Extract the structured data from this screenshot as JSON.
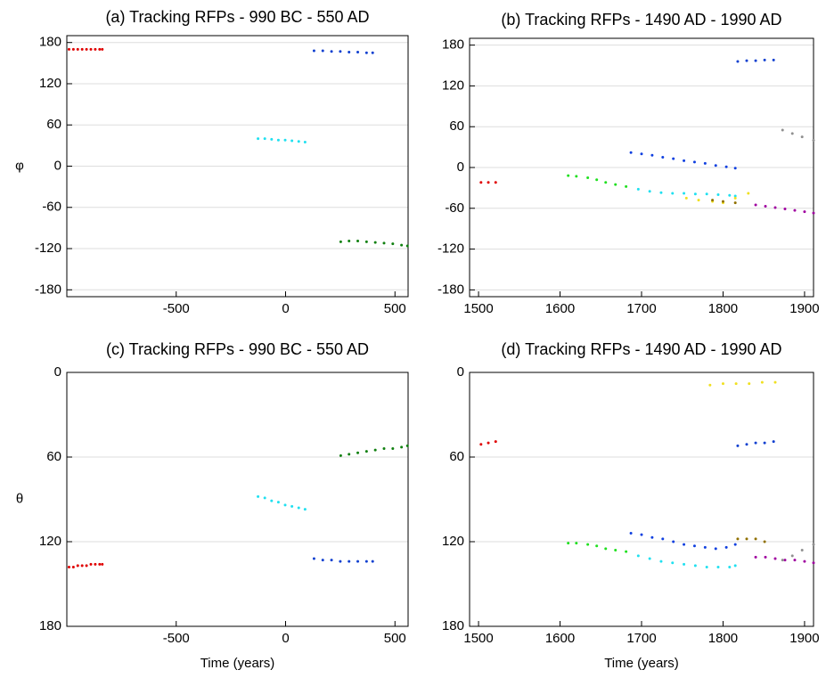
{
  "chart_data": [
    {
      "type": "scatter",
      "title": "(a) Tracking RFPs - 990 BC - 550 AD",
      "ylabel": "φ",
      "xlim": [
        -1000,
        560
      ],
      "ylim": [
        -190,
        190
      ],
      "xticks": [
        -500,
        0,
        500
      ],
      "yticks": [
        -180,
        -120,
        -60,
        0,
        60,
        120,
        180
      ],
      "grid": true,
      "y_inverted": false,
      "series": [
        {
          "color": "#e00000",
          "x": [
            -990,
            -970,
            -950,
            -930,
            -910,
            -890,
            -870,
            -850,
            -838
          ],
          "values": [
            170,
            170,
            170,
            170,
            170,
            170,
            170,
            170,
            170
          ]
        },
        {
          "color": "#1040d0",
          "x": [
            130,
            170,
            210,
            250,
            290,
            330,
            370,
            398
          ],
          "values": [
            168,
            168,
            167,
            167,
            166,
            166,
            165,
            165
          ]
        },
        {
          "color": "#20e0f0",
          "x": [
            -126,
            -95,
            -64,
            -33,
            -2,
            29,
            60,
            89
          ],
          "values": [
            40,
            40,
            39,
            38,
            38,
            37,
            36,
            35
          ]
        },
        {
          "color": "#108010",
          "x": [
            252,
            290,
            330,
            370,
            410,
            450,
            490,
            530,
            557
          ],
          "values": [
            -110,
            -109,
            -109,
            -110,
            -111,
            -112,
            -113,
            -115,
            -116
          ]
        }
      ]
    },
    {
      "type": "scatter",
      "title": "(b) Tracking RFPs - 1490 AD - 1990 AD",
      "xlim": [
        1489,
        1911
      ],
      "ylim": [
        -190,
        190
      ],
      "xticks": [
        1500,
        1600,
        1700,
        1800,
        1900
      ],
      "yticks": [
        -180,
        -120,
        -60,
        0,
        60,
        120,
        180
      ],
      "grid": true,
      "y_inverted": false,
      "series": [
        {
          "color": "#e00000",
          "x": [
            1503,
            1512,
            1521
          ],
          "values": [
            -22,
            -22,
            -22
          ]
        },
        {
          "color": "#20e020",
          "x": [
            1610,
            1620,
            1634,
            1645,
            1656,
            1668,
            1681
          ],
          "values": [
            -12,
            -13,
            -15,
            -18,
            -22,
            -25,
            -28
          ]
        },
        {
          "color": "#1040e0",
          "x": [
            1687,
            1700,
            1713,
            1726,
            1739,
            1752,
            1765,
            1778,
            1791,
            1804,
            1815
          ],
          "values": [
            22,
            20,
            18,
            15,
            13,
            10,
            8,
            6,
            3,
            1,
            -1
          ]
        },
        {
          "color": "#20e0f0",
          "x": [
            1696,
            1710,
            1724,
            1738,
            1752,
            1766,
            1780,
            1794,
            1808,
            1815
          ],
          "values": [
            -32,
            -35,
            -37,
            -38,
            -38,
            -39,
            -39,
            -40,
            -41,
            -42
          ]
        },
        {
          "color": "#f0e020",
          "x": [
            1755,
            1770,
            1787,
            1800,
            1815,
            1831
          ],
          "values": [
            -45,
            -48,
            -50,
            -52,
            -45,
            -38
          ]
        },
        {
          "color": "#907000",
          "x": [
            1787,
            1800,
            1815
          ],
          "values": [
            -48,
            -50,
            -52
          ]
        },
        {
          "color": "#1040d0",
          "x": [
            1818,
            1829,
            1840,
            1851,
            1862
          ],
          "values": [
            156,
            157,
            157,
            158,
            158
          ]
        },
        {
          "color": "#a000a0",
          "x": [
            1840,
            1852,
            1864,
            1876,
            1888,
            1900,
            1911
          ],
          "values": [
            -55,
            -57,
            -59,
            -61,
            -63,
            -65,
            -67
          ]
        },
        {
          "color": "#909090",
          "x": [
            1873,
            1885,
            1897,
            1911
          ],
          "values": [
            55,
            50,
            45,
            40
          ]
        }
      ]
    },
    {
      "type": "scatter",
      "title": "(c) Tracking RFPs - 990 BC - 550 AD",
      "ylabel": "θ",
      "xlabel": "Time (years)",
      "xlim": [
        -1000,
        560
      ],
      "ylim": [
        0,
        180
      ],
      "xticks": [
        -500,
        0,
        500
      ],
      "yticks": [
        0,
        60,
        120,
        180
      ],
      "grid": true,
      "y_inverted": true,
      "series": [
        {
          "color": "#e00000",
          "x": [
            -990,
            -970,
            -950,
            -930,
            -910,
            -890,
            -870,
            -850,
            -838
          ],
          "values": [
            138,
            138,
            137,
            137,
            137,
            136,
            136,
            136,
            136
          ]
        },
        {
          "color": "#20e0f0",
          "x": [
            -126,
            -95,
            -64,
            -33,
            -2,
            29,
            60,
            89
          ],
          "values": [
            88,
            89,
            91,
            92,
            94,
            95,
            96,
            97
          ]
        },
        {
          "color": "#1040d0",
          "x": [
            130,
            170,
            210,
            250,
            290,
            330,
            370,
            398
          ],
          "values": [
            132,
            133,
            133,
            134,
            134,
            134,
            134,
            134
          ]
        },
        {
          "color": "#108010",
          "x": [
            252,
            290,
            330,
            370,
            410,
            450,
            490,
            530,
            557
          ],
          "values": [
            59,
            58,
            57,
            56,
            55,
            54,
            54,
            53,
            52
          ]
        }
      ]
    },
    {
      "type": "scatter",
      "title": "(d) Tracking RFPs - 1490 AD - 1990 AD",
      "xlabel": "Time (years)",
      "xlim": [
        1489,
        1911
      ],
      "ylim": [
        0,
        180
      ],
      "xticks": [
        1500,
        1600,
        1700,
        1800,
        1900
      ],
      "yticks": [
        0,
        60,
        120,
        180
      ],
      "grid": true,
      "y_inverted": true,
      "series": [
        {
          "color": "#e00000",
          "x": [
            1503,
            1512,
            1521
          ],
          "values": [
            51,
            50,
            49
          ]
        },
        {
          "color": "#f0e020",
          "x": [
            1784,
            1800,
            1816,
            1832,
            1848,
            1864
          ],
          "values": [
            9,
            8,
            8,
            8,
            7,
            7
          ]
        },
        {
          "color": "#1040d0",
          "x": [
            1818,
            1829,
            1840,
            1851,
            1862
          ],
          "values": [
            52,
            51,
            50,
            50,
            49
          ]
        },
        {
          "color": "#1040e0",
          "x": [
            1687,
            1700,
            1713,
            1726,
            1739,
            1752,
            1765,
            1778,
            1791,
            1804,
            1815
          ],
          "values": [
            114,
            115,
            117,
            118,
            120,
            122,
            123,
            124,
            125,
            124,
            122
          ]
        },
        {
          "color": "#907000",
          "x": [
            1818,
            1829,
            1840,
            1851
          ],
          "values": [
            118,
            118,
            118,
            120
          ]
        },
        {
          "color": "#20e020",
          "x": [
            1610,
            1620,
            1634,
            1645,
            1656,
            1668,
            1681
          ],
          "values": [
            121,
            121,
            122,
            123,
            125,
            126,
            127
          ]
        },
        {
          "color": "#20e0f0",
          "x": [
            1696,
            1710,
            1724,
            1738,
            1752,
            1766,
            1780,
            1794,
            1808,
            1815
          ],
          "values": [
            130,
            132,
            134,
            135,
            136,
            137,
            138,
            138,
            138,
            137
          ]
        },
        {
          "color": "#a000a0",
          "x": [
            1840,
            1852,
            1864,
            1876,
            1888,
            1900,
            1911
          ],
          "values": [
            131,
            131,
            132,
            133,
            133,
            134,
            135
          ]
        },
        {
          "color": "#909090",
          "x": [
            1873,
            1885,
            1897,
            1911
          ],
          "values": [
            133,
            130,
            126,
            122
          ]
        }
      ]
    }
  ]
}
